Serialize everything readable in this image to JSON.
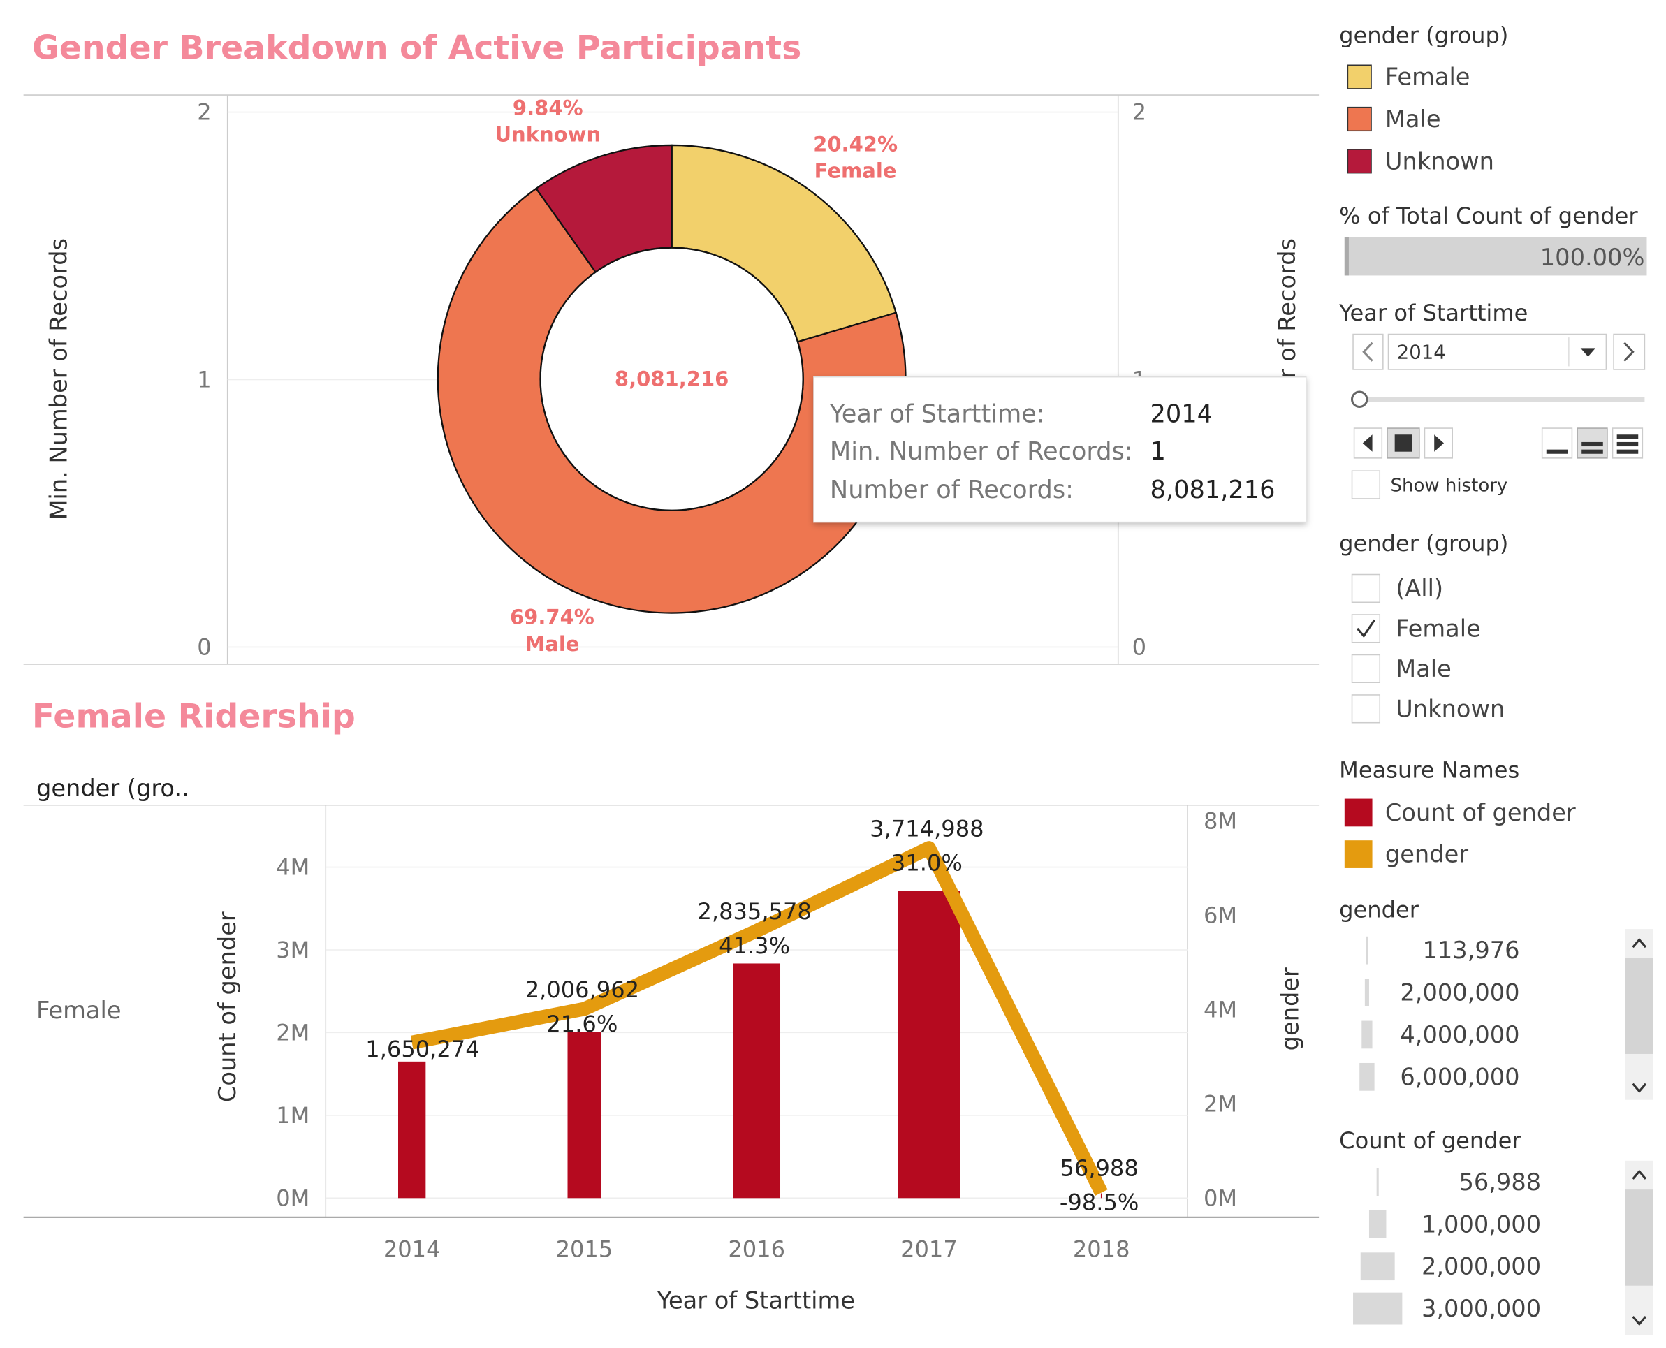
{
  "chart_data": [
    {
      "type": "pie",
      "title": "Gender Breakdown of Active Participants",
      "categories": [
        "Female",
        "Male",
        "Unknown"
      ],
      "values": [
        20.42,
        69.74,
        9.84
      ],
      "value_labels": [
        "20.42%",
        "69.74%",
        "9.84%"
      ],
      "colors": [
        "#f2d06b",
        "#ee7650",
        "#b5193b"
      ],
      "center_label": "8,081,216",
      "y_label": "Min. Number of Records",
      "ylim": [
        -0.064,
        2.064
      ],
      "yticks": [
        0,
        1,
        2
      ],
      "y2_label": "Min. Number of Records",
      "y2lim": [
        -0.064,
        2.064
      ],
      "y2ticks": [
        0,
        1,
        2
      ],
      "tooltip": [
        {
          "label": "Year of Starttime:",
          "value": "2014"
        },
        {
          "label": "Min. Number of Records:",
          "value": "1"
        },
        {
          "label": "Number of Records:",
          "value": "8,081,216"
        }
      ]
    },
    {
      "type": "bar_line",
      "title": "Female Ridership",
      "row_header": "gender (gro..",
      "row_label": "Female",
      "x_label": "Year of Starttime",
      "y_label": "Count of gender",
      "y2_label": "gender",
      "categories": [
        "2014",
        "2015",
        "2016",
        "2017",
        "2018"
      ],
      "series": [
        {
          "name": "Count of gender",
          "color": "#b50a1f",
          "values": [
            1650274,
            2006962,
            2835578,
            3714988,
            56988
          ],
          "value_labels": [
            "1,650,274",
            "2,006,962",
            "2,835,578",
            "3,714,988",
            "56,988"
          ]
        },
        {
          "name": "gender",
          "color": "#e49b0f",
          "axis": "y2",
          "values": [
            3300548,
            4013924,
            5671156,
            7429976,
            113976
          ]
        }
      ],
      "change": {
        "values": [
          null,
          21.6,
          41.3,
          31.0,
          -98.5
        ],
        "value_labels": [
          null,
          "21.6%",
          "41.3%",
          "31.0%",
          "-98.5%"
        ]
      },
      "ylim": [
        -233000,
        4750000
      ],
      "yticks": [
        {
          "value": 0,
          "label": "0M"
        },
        {
          "value": 1000000,
          "label": "1M"
        },
        {
          "value": 2000000,
          "label": "2M"
        },
        {
          "value": 3000000,
          "label": "3M"
        },
        {
          "value": 4000000,
          "label": "4M"
        }
      ],
      "y2lim": [
        -409000,
        8340000
      ],
      "y2ticks": [
        {
          "value": 0,
          "label": "0M"
        },
        {
          "value": 2000000,
          "label": "2M"
        },
        {
          "value": 4000000,
          "label": "4M"
        },
        {
          "value": 6000000,
          "label": "6M"
        },
        {
          "value": 8000000,
          "label": "8M"
        }
      ],
      "grid": true
    }
  ],
  "sidebar": {
    "color_legend_title": "gender (group)",
    "percent_title": "% of Total Count of gender",
    "percent_value": "100.00%",
    "year_title": "Year of Starttime",
    "year_value": "2014",
    "show_history": "Show history",
    "filter_title": "gender (group)",
    "filter_items": [
      {
        "label": "(All)",
        "checked": false
      },
      {
        "label": "Female",
        "checked": true
      },
      {
        "label": "Male",
        "checked": false
      },
      {
        "label": "Unknown",
        "checked": false
      }
    ],
    "measure_title": "Measure Names",
    "size1_title": "gender",
    "size1_items": [
      "113,976",
      "2,000,000",
      "4,000,000",
      "6,000,000"
    ],
    "size2_title": "Count of gender",
    "size2_items": [
      "56,988",
      "1,000,000",
      "2,000,000",
      "3,000,000"
    ]
  }
}
